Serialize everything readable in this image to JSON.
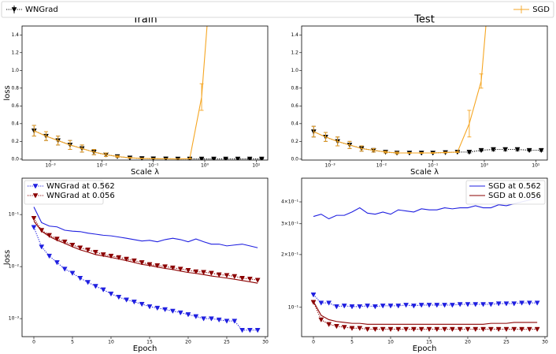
{
  "chart_data": [
    {
      "type": "line",
      "title": "Train",
      "xlabel": "Scale λ",
      "ylabel": "loss",
      "xlog": true,
      "legend": "figure",
      "x": [
        0.00048,
        0.00082,
        0.0014,
        0.0024,
        0.0041,
        0.007,
        0.012,
        0.02,
        0.035,
        0.06,
        0.1,
        0.175,
        0.3,
        0.51,
        0.87,
        1.5,
        2.56,
        4.4,
        7.5,
        12.8
      ],
      "xlim": [
        0.00028,
        16.8
      ],
      "xticks": [
        {
          "value": 0.001,
          "label": "10⁻³"
        },
        {
          "value": 0.01,
          "label": "10⁻²"
        },
        {
          "value": 0.1,
          "label": "10⁻¹"
        },
        {
          "value": 1,
          "label": "10⁰"
        },
        {
          "value": 10,
          "label": "10¹"
        }
      ],
      "ylim": [
        -0.01,
        1.5
      ],
      "yticks": [
        {
          "value": 0,
          "label": "0.0"
        },
        0.2,
        0.4,
        0.6,
        0.8,
        {
          "value": 1,
          "label": "1.0"
        },
        1.2,
        1.4
      ],
      "series": [
        {
          "name": "WNGrad",
          "color": "#000000",
          "linestyle": "dotted",
          "marker": "v",
          "values": [
            0.32,
            0.26,
            0.21,
            0.16,
            0.12,
            0.08,
            0.05,
            0.03,
            0.015,
            0.008,
            0.005,
            0.004,
            0.003,
            0.003,
            0.003,
            0.003,
            0.003,
            0.003,
            0.003,
            0.003
          ],
          "errors": [
            0.06,
            0.05,
            0.05,
            0.05,
            0.04,
            0.03,
            0.02,
            0.01,
            0.005,
            0.003,
            0.002,
            0.001,
            0.001,
            0.001,
            0.001,
            0.001,
            0.001,
            0.001,
            0.001,
            0.001
          ]
        },
        {
          "name": "SGD",
          "color": "#f5a623",
          "linestyle": "solid",
          "values": [
            0.32,
            0.26,
            0.21,
            0.16,
            0.12,
            0.08,
            0.05,
            0.03,
            0.015,
            0.008,
            0.005,
            0.004,
            0.003,
            0.005,
            0.7,
            2.5,
            null,
            null,
            null,
            null
          ],
          "errors": [
            0.06,
            0.05,
            0.05,
            0.05,
            0.04,
            0.03,
            0.02,
            0.01,
            0.005,
            0.003,
            0.002,
            0.001,
            0.001,
            0.002,
            0.15,
            null,
            null,
            null,
            null,
            null
          ]
        }
      ]
    },
    {
      "type": "line",
      "title": "Test",
      "xlabel": "Scale λ",
      "xlog": true,
      "x": [
        0.00048,
        0.00082,
        0.0014,
        0.0024,
        0.0041,
        0.007,
        0.012,
        0.02,
        0.035,
        0.06,
        0.1,
        0.175,
        0.3,
        0.51,
        0.87,
        1.5,
        2.56,
        4.4,
        7.5,
        12.8
      ],
      "xlim": [
        0.00028,
        16.8
      ],
      "xticks": [
        {
          "value": 0.001,
          "label": "10⁻³"
        },
        {
          "value": 0.01,
          "label": "10⁻²"
        },
        {
          "value": 0.1,
          "label": "10⁻¹"
        },
        {
          "value": 1,
          "label": "10⁰"
        },
        {
          "value": 10,
          "label": "10¹"
        }
      ],
      "ylim": [
        -0.01,
        1.5
      ],
      "yticks": [
        {
          "value": 0,
          "label": "0.0"
        },
        0.2,
        0.4,
        0.6,
        0.8,
        {
          "value": 1,
          "label": "1.0"
        },
        1.2,
        1.4
      ],
      "series": [
        {
          "name": "WNGrad",
          "color": "#000000",
          "linestyle": "dotted",
          "marker": "v",
          "values": [
            0.31,
            0.25,
            0.2,
            0.16,
            0.12,
            0.1,
            0.08,
            0.07,
            0.07,
            0.07,
            0.07,
            0.075,
            0.08,
            0.08,
            0.1,
            0.11,
            0.11,
            0.11,
            0.1,
            0.1
          ],
          "errors": [
            0.06,
            0.05,
            0.05,
            0.04,
            0.03,
            0.02,
            0.01,
            0.01,
            0.005,
            0.005,
            0.005,
            0.005,
            0.005,
            0.01,
            0.01,
            0.015,
            0.015,
            0.015,
            0.01,
            0.01
          ]
        },
        {
          "name": "SGD",
          "color": "#f5a623",
          "linestyle": "solid",
          "values": [
            0.31,
            0.25,
            0.2,
            0.16,
            0.12,
            0.1,
            0.08,
            0.07,
            0.07,
            0.07,
            0.07,
            0.075,
            0.08,
            0.4,
            0.88,
            2.5,
            null,
            null,
            null,
            null
          ],
          "errors": [
            0.06,
            0.05,
            0.05,
            0.04,
            0.03,
            0.02,
            0.01,
            0.01,
            0.005,
            0.005,
            0.005,
            0.005,
            0.005,
            0.15,
            0.08,
            null,
            null,
            null,
            null,
            null
          ]
        }
      ]
    },
    {
      "type": "line",
      "xlabel": "Epoch",
      "ylabel": "loss",
      "ylog": true,
      "legend": "upper left",
      "x": [
        0,
        1,
        2,
        3,
        4,
        5,
        6,
        7,
        8,
        9,
        10,
        11,
        12,
        13,
        14,
        15,
        16,
        17,
        18,
        19,
        20,
        21,
        22,
        23,
        24,
        25,
        26,
        27,
        28,
        29
      ],
      "xlim": [
        -1.53,
        30.31
      ],
      "xticks": [
        0,
        5,
        10,
        15,
        20,
        25,
        30
      ],
      "ylim": [
        0.00045,
        0.5
      ],
      "yticks": [
        {
          "value": 0.001,
          "label": "10⁻³"
        },
        {
          "value": 0.01,
          "label": "10⁻²"
        },
        {
          "value": 0.1,
          "label": "10⁻¹"
        }
      ],
      "series": [
        {
          "name": "WNGrad at 0.562",
          "color": "#1f1fe0",
          "linestyle": "dotted",
          "marker": "v",
          "values": [
            0.057,
            0.024,
            0.016,
            0.012,
            0.009,
            0.0075,
            0.006,
            0.005,
            0.0042,
            0.0036,
            0.003,
            0.0026,
            0.0023,
            0.0021,
            0.0019,
            0.0017,
            0.0016,
            0.0015,
            0.0014,
            0.0013,
            0.0012,
            0.0011,
            0.001,
            0.001,
            0.00095,
            0.0009,
            0.0009,
            0.0006,
            0.0006,
            0.0006
          ]
        },
        {
          "name": "WNGrad at 0.056",
          "color": "#8b0000",
          "linestyle": "dotted",
          "marker": "v",
          "values": [
            0.085,
            0.05,
            0.04,
            0.034,
            0.03,
            0.026,
            0.023,
            0.021,
            0.019,
            0.017,
            0.016,
            0.015,
            0.014,
            0.013,
            0.012,
            0.011,
            0.0105,
            0.01,
            0.0095,
            0.009,
            0.0085,
            0.008,
            0.0078,
            0.0075,
            0.007,
            0.0068,
            0.0065,
            0.006,
            0.0058,
            0.0055
          ]
        },
        {
          "color": "#1f1fe0",
          "linestyle": "solid",
          "values": [
            0.14,
            0.07,
            0.06,
            0.058,
            0.05,
            0.048,
            0.047,
            0.044,
            0.042,
            0.04,
            0.039,
            0.037,
            0.035,
            0.033,
            0.031,
            0.032,
            0.03,
            0.033,
            0.035,
            0.033,
            0.03,
            0.034,
            0.03,
            0.027,
            0.027,
            0.025,
            0.026,
            0.027,
            0.025,
            0.023
          ]
        },
        {
          "color": "#8b0000",
          "linestyle": "solid",
          "values": [
            0.075,
            0.048,
            0.038,
            0.032,
            0.028,
            0.024,
            0.021,
            0.019,
            0.017,
            0.016,
            0.015,
            0.014,
            0.013,
            0.012,
            0.011,
            0.0105,
            0.0098,
            0.0092,
            0.0088,
            0.0082,
            0.0077,
            0.0074,
            0.007,
            0.0066,
            0.0063,
            0.006,
            0.0057,
            0.0054,
            0.0051,
            0.0048
          ]
        }
      ]
    },
    {
      "type": "line",
      "xlabel": "Epoch",
      "ylog": true,
      "legend": "upper right",
      "x": [
        0,
        1,
        2,
        3,
        4,
        5,
        6,
        7,
        8,
        9,
        10,
        11,
        12,
        13,
        14,
        15,
        16,
        17,
        18,
        19,
        20,
        21,
        22,
        23,
        24,
        25,
        26,
        27,
        28,
        29
      ],
      "xlim": [
        -1.53,
        30.31
      ],
      "xticks": [
        0,
        5,
        10,
        15,
        20,
        25,
        30
      ],
      "ylim": [
        0.068,
        0.546
      ],
      "yticks": [
        {
          "value": 0.1,
          "label": "10⁻¹"
        },
        {
          "value": 0.2,
          "label": "2×10⁻¹"
        },
        {
          "value": 0.3,
          "label": "3×10⁻¹"
        },
        {
          "value": 0.4,
          "label": "4×10⁻¹"
        }
      ],
      "series": [
        {
          "name": "SGD at 0.562",
          "color": "#1f1fe0",
          "linestyle": "solid",
          "values": [
            0.33,
            0.34,
            0.32,
            0.335,
            0.335,
            0.35,
            0.37,
            0.345,
            0.34,
            0.35,
            0.34,
            0.36,
            0.355,
            0.35,
            0.365,
            0.36,
            0.36,
            0.37,
            0.365,
            0.37,
            0.37,
            0.38,
            0.37,
            0.37,
            0.385,
            0.38,
            0.39,
            0.4,
            0.41,
            0.42
          ]
        },
        {
          "name": "SGD at 0.056",
          "color": "#8b0000",
          "linestyle": "solid",
          "values": [
            0.108,
            0.09,
            0.085,
            0.083,
            0.082,
            0.081,
            0.081,
            0.08,
            0.08,
            0.08,
            0.08,
            0.08,
            0.08,
            0.08,
            0.08,
            0.08,
            0.08,
            0.08,
            0.08,
            0.08,
            0.08,
            0.08,
            0.08,
            0.081,
            0.081,
            0.081,
            0.082,
            0.082,
            0.082,
            0.082
          ]
        },
        {
          "color": "#1f1fe0",
          "linestyle": "dotted",
          "marker": "v",
          "values": [
            0.118,
            0.106,
            0.106,
            0.101,
            0.102,
            0.101,
            0.101,
            0.102,
            0.101,
            0.102,
            0.102,
            0.102,
            0.103,
            0.102,
            0.103,
            0.103,
            0.103,
            0.103,
            0.103,
            0.104,
            0.104,
            0.104,
            0.104,
            0.104,
            0.105,
            0.105,
            0.105,
            0.106,
            0.106,
            0.106
          ]
        },
        {
          "color": "#8b0000",
          "linestyle": "dotted",
          "marker": "v",
          "values": [
            0.107,
            0.085,
            0.08,
            0.078,
            0.077,
            0.076,
            0.076,
            0.075,
            0.075,
            0.075,
            0.075,
            0.075,
            0.075,
            0.075,
            0.075,
            0.075,
            0.075,
            0.075,
            0.075,
            0.075,
            0.075,
            0.075,
            0.075,
            0.075,
            0.075,
            0.075,
            0.075,
            0.075,
            0.075,
            0.075
          ]
        }
      ]
    }
  ]
}
